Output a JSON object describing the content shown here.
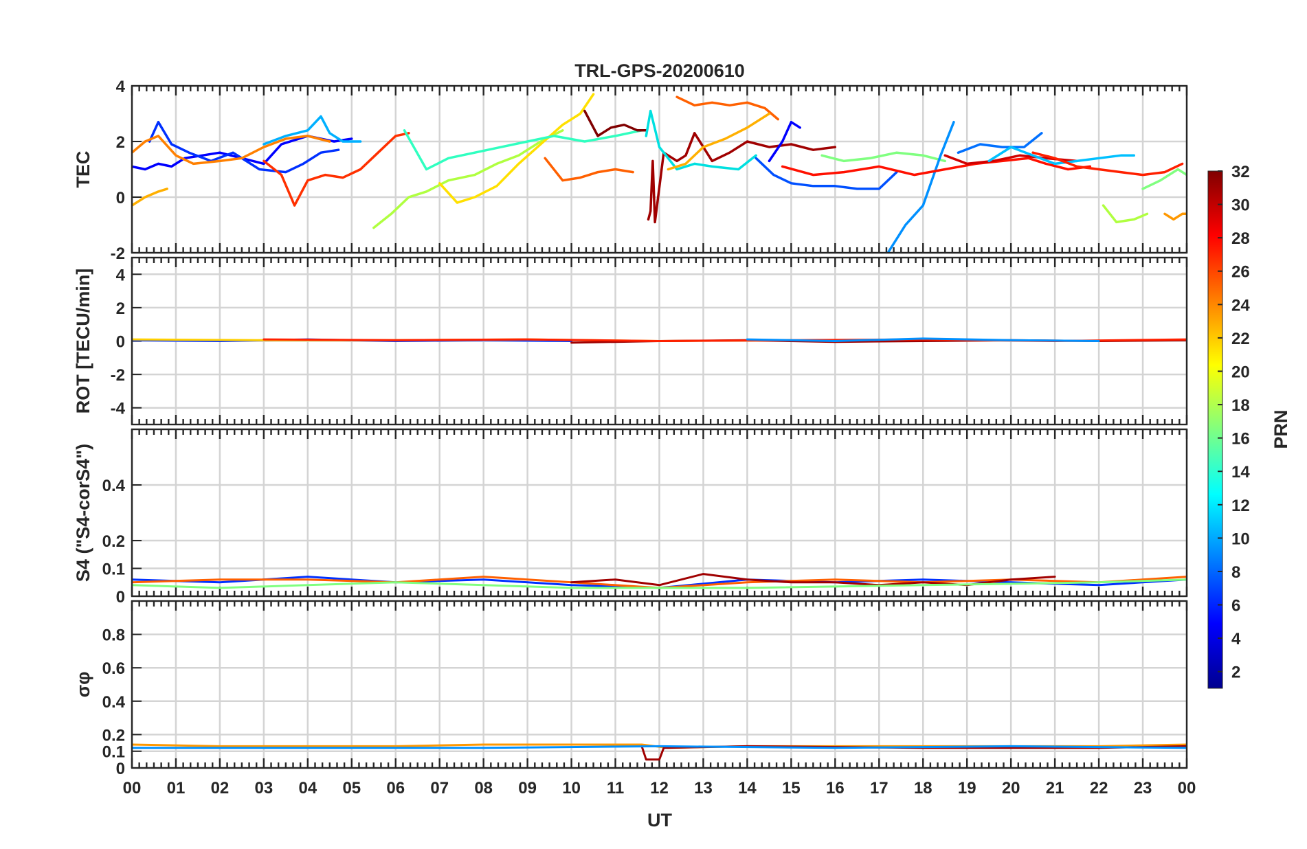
{
  "chart_data": {
    "type": "line",
    "title": "TRL-GPS-20200610",
    "xlabel": "UT",
    "xlim": [
      0,
      24
    ],
    "x_ticks": [
      "00",
      "01",
      "02",
      "03",
      "04",
      "05",
      "06",
      "07",
      "08",
      "09",
      "10",
      "11",
      "12",
      "13",
      "14",
      "15",
      "16",
      "17",
      "18",
      "19",
      "20",
      "21",
      "22",
      "23",
      "00"
    ],
    "colorbar": {
      "label": "PRN",
      "range": [
        1,
        32
      ],
      "ticks": [
        "2",
        "4",
        "6",
        "8",
        "10",
        "12",
        "14",
        "16",
        "18",
        "20",
        "22",
        "24",
        "26",
        "28",
        "30",
        "32"
      ],
      "colormap": "jet"
    },
    "panels": [
      {
        "ylabel": "TEC",
        "ylim": [
          -2,
          4
        ],
        "y_ticks": [
          "-2",
          "0",
          "2",
          "4"
        ],
        "series": [
          {
            "prn": 3,
            "color": "#0000ff",
            "x": [
              0,
              0.3,
              0.6,
              0.9,
              1.2,
              1.6,
              2.0,
              2.5,
              3.0,
              3.4,
              4.0,
              4.6,
              5.0
            ],
            "y": [
              1.1,
              1.0,
              1.2,
              1.1,
              1.4,
              1.5,
              1.6,
              1.4,
              1.2,
              1.9,
              2.2,
              2.0,
              2.1
            ]
          },
          {
            "prn": 5,
            "color": "#0030ff",
            "x": [
              0.4,
              0.6,
              0.9,
              1.3,
              1.8,
              2.3,
              2.9,
              3.5,
              3.9,
              4.3,
              4.7
            ],
            "y": [
              2.0,
              2.7,
              1.9,
              1.6,
              1.3,
              1.6,
              1.0,
              0.9,
              1.2,
              1.6,
              1.7
            ]
          },
          {
            "prn": 11,
            "color": "#00b0ff",
            "x": [
              3.0,
              3.5,
              4.0,
              4.3,
              4.5,
              4.8,
              5.2
            ],
            "y": [
              1.9,
              2.2,
              2.4,
              2.9,
              2.3,
              2.0,
              2.0
            ]
          },
          {
            "prn": 26,
            "color": "#ff3000",
            "x": [
              3.0,
              3.4,
              3.7,
              4.0,
              4.4,
              4.8,
              5.2,
              5.6,
              6.0,
              6.3
            ],
            "y": [
              1.3,
              0.8,
              -0.3,
              0.6,
              0.8,
              0.7,
              1.0,
              1.6,
              2.2,
              2.3
            ]
          },
          {
            "prn": 23,
            "color": "#ff8000",
            "x": [
              0,
              0.3,
              0.6,
              1.0,
              1.4,
              2.0,
              2.5,
              3.0,
              3.5,
              4.0,
              4.5
            ],
            "y": [
              1.6,
              2.0,
              2.2,
              1.5,
              1.2,
              1.3,
              1.4,
              1.8,
              2.1,
              2.2,
              2.0
            ]
          },
          {
            "prn": 21,
            "color": "#ffb000",
            "x": [
              0,
              0.3,
              0.6,
              0.8
            ],
            "y": [
              -0.3,
              0.0,
              0.2,
              0.3
            ]
          },
          {
            "prn": 17,
            "color": "#b0ff40",
            "x": [
              5.5,
              5.9,
              6.3,
              6.7,
              7.2,
              7.8,
              8.3,
              8.8,
              9.3,
              9.8
            ],
            "y": [
              -1.1,
              -0.6,
              0,
              0.2,
              0.6,
              0.8,
              1.2,
              1.5,
              2.0,
              2.4
            ]
          },
          {
            "prn": 19,
            "color": "#ffe000",
            "x": [
              7.0,
              7.4,
              7.8,
              8.3,
              8.8,
              9.3,
              9.8,
              10.2,
              10.5
            ],
            "y": [
              0.5,
              -0.2,
              0,
              0.4,
              1.2,
              1.9,
              2.6,
              3.0,
              3.7
            ]
          },
          {
            "prn": 14,
            "color": "#30ffc0",
            "x": [
              6.2,
              6.7,
              7.2,
              7.8,
              8.4,
              9.0,
              9.6,
              10.3,
              11.0,
              11.6
            ],
            "y": [
              2.4,
              1.0,
              1.4,
              1.6,
              1.8,
              2.0,
              2.2,
              2.0,
              2.2,
              2.4
            ]
          },
          {
            "prn": 24,
            "color": "#ff6000",
            "x": [
              9.4,
              9.8,
              10.2,
              10.6,
              11.0,
              11.4
            ],
            "y": [
              1.4,
              0.6,
              0.7,
              0.9,
              1.0,
              0.9
            ]
          },
          {
            "prn": 32,
            "color": "#800000",
            "x": [
              10.3,
              10.6,
              10.9,
              11.2,
              11.5,
              11.7
            ],
            "y": [
              3.1,
              2.2,
              2.5,
              2.6,
              2.4,
              2.4
            ]
          },
          {
            "prn": 31,
            "color": "#a00000",
            "x": [
              11.75,
              11.8,
              11.85,
              11.9,
              12.1,
              12.4,
              12.6,
              12.8,
              13.2,
              13.6,
              14.0,
              14.5,
              15.0,
              15.5,
              16.0
            ],
            "y": [
              -0.8,
              -0.5,
              1.3,
              -0.9,
              1.6,
              1.3,
              1.5,
              2.3,
              1.3,
              1.6,
              2.0,
              1.8,
              1.9,
              1.7,
              1.8
            ]
          },
          {
            "prn": 13,
            "color": "#00e0e0",
            "x": [
              11.7,
              11.8,
              12.0,
              12.4,
              12.8,
              13.2,
              13.8,
              14.2
            ],
            "y": [
              2.2,
              3.1,
              1.8,
              1.0,
              1.2,
              1.1,
              1.0,
              1.5
            ]
          },
          {
            "prn": 24,
            "color": "#ff6000",
            "x": [
              12.4,
              12.8,
              13.2,
              13.6,
              14.0,
              14.4,
              14.7
            ],
            "y": [
              3.6,
              3.3,
              3.4,
              3.3,
              3.4,
              3.2,
              2.8
            ]
          },
          {
            "prn": 21,
            "color": "#ffb000",
            "x": [
              12.2,
              12.6,
              13.0,
              13.5,
              14.0,
              14.5
            ],
            "y": [
              1.0,
              1.2,
              1.8,
              2.1,
              2.5,
              3.0
            ]
          },
          {
            "prn": 6,
            "color": "#0050ff",
            "x": [
              14.2,
              14.6,
              15.0,
              15.5,
              16.0,
              16.5,
              17.0,
              17.4
            ],
            "y": [
              1.4,
              0.8,
              0.5,
              0.4,
              0.4,
              0.3,
              0.3,
              0.9
            ]
          },
          {
            "prn": 3,
            "color": "#0000ff",
            "x": [
              14.5,
              14.8,
              15.0,
              15.2
            ],
            "y": [
              1.3,
              2.0,
              2.7,
              2.5
            ]
          },
          {
            "prn": 16,
            "color": "#80ff80",
            "x": [
              15.7,
              16.2,
              16.8,
              17.4,
              18.0,
              18.5
            ],
            "y": [
              1.5,
              1.3,
              1.4,
              1.6,
              1.5,
              1.3
            ]
          },
          {
            "prn": 9,
            "color": "#0090ff",
            "x": [
              17.2,
              17.6,
              18.0,
              18.4,
              18.7
            ],
            "y": [
              -2.0,
              -1.0,
              -0.3,
              1.5,
              2.7
            ]
          },
          {
            "prn": 28,
            "color": "#ff1000",
            "x": [
              14.8,
              15.5,
              16.2,
              17.0,
              17.8,
              18.5,
              19.2,
              19.8,
              20.4,
              20.8,
              21.3,
              21.8
            ],
            "y": [
              1.1,
              0.8,
              0.9,
              1.1,
              0.8,
              1.0,
              1.2,
              1.3,
              1.4,
              1.2,
              1.0,
              1.1
            ]
          },
          {
            "prn": 30,
            "color": "#d00000",
            "x": [
              18.5,
              19.0,
              19.6,
              20.2,
              20.8,
              21.5
            ],
            "y": [
              1.5,
              1.2,
              1.3,
              1.5,
              1.4,
              1.3
            ]
          },
          {
            "prn": 7,
            "color": "#0070ff",
            "x": [
              18.8,
              19.3,
              19.8,
              20.3,
              20.7
            ],
            "y": [
              1.6,
              1.9,
              1.8,
              1.8,
              2.3
            ]
          },
          {
            "prn": 12,
            "color": "#00c0ff",
            "x": [
              19.5,
              20.0,
              20.5,
              21.0,
              21.5,
              22.0,
              22.5,
              22.8
            ],
            "y": [
              1.3,
              1.8,
              1.5,
              1.2,
              1.3,
              1.4,
              1.5,
              1.5
            ]
          },
          {
            "prn": 27,
            "color": "#ff2000",
            "x": [
              20.5,
              21.0,
              21.5,
              22.0,
              22.5,
              23.0,
              23.5,
              23.9
            ],
            "y": [
              1.6,
              1.4,
              1.1,
              1.0,
              0.9,
              0.8,
              0.9,
              1.2
            ]
          },
          {
            "prn": 17,
            "color": "#b0ff40",
            "x": [
              22.1,
              22.4,
              22.8,
              23.1
            ],
            "y": [
              -0.3,
              -0.9,
              -0.8,
              -0.6
            ]
          },
          {
            "prn": 16,
            "color": "#80ff80",
            "x": [
              23.0,
              23.4,
              23.8,
              24.0
            ],
            "y": [
              0.3,
              0.6,
              1.0,
              0.8
            ]
          },
          {
            "prn": 22,
            "color": "#ff9800",
            "x": [
              23.5,
              23.7,
              23.9,
              24.0
            ],
            "y": [
              -0.6,
              -0.8,
              -0.6,
              -0.6
            ]
          }
        ]
      },
      {
        "ylabel": "ROT [TECU/min]",
        "ylim": [
          -5,
          5
        ],
        "y_ticks": [
          "-4",
          "-2",
          "0",
          "2",
          "4"
        ],
        "series": [
          {
            "prn": 5,
            "color": "#0030ff",
            "x": [
              0,
              2,
              4,
              6,
              8,
              10
            ],
            "y": [
              0.05,
              0.0,
              0.1,
              0.0,
              0.05,
              0.0
            ]
          },
          {
            "prn": 20,
            "color": "#ffd000",
            "x": [
              0,
              3,
              6,
              9,
              12,
              15
            ],
            "y": [
              0.1,
              0.05,
              0.05,
              0.1,
              0.0,
              0.05
            ]
          },
          {
            "prn": 31,
            "color": "#a00000",
            "x": [
              10,
              12,
              14,
              16,
              18,
              20,
              22,
              24
            ],
            "y": [
              -0.1,
              0.0,
              0.05,
              -0.05,
              0.0,
              0.05,
              0.0,
              0.05
            ]
          },
          {
            "prn": 27,
            "color": "#ff2000",
            "x": [
              3,
              6,
              9,
              12,
              15,
              18,
              21,
              24
            ],
            "y": [
              0.1,
              0.05,
              0.1,
              0.0,
              0.05,
              0.1,
              0.0,
              0.1
            ]
          },
          {
            "prn": 9,
            "color": "#0090ff",
            "x": [
              14,
              16,
              18,
              20,
              22
            ],
            "y": [
              0.1,
              0.0,
              0.15,
              0.05,
              0.0
            ]
          }
        ]
      },
      {
        "ylabel": "S4 (\"S4-corS4\")",
        "ylim": [
          0,
          0.6
        ],
        "y_ticks": [
          "0",
          "0.1",
          "0.2",
          "0.4"
        ],
        "series": [
          {
            "prn": 5,
            "color": "#0030ff",
            "x": [
              0,
              2,
              4,
              6,
              8,
              10,
              12,
              14,
              16,
              18,
              20,
              22,
              24
            ],
            "y": [
              0.06,
              0.05,
              0.07,
              0.05,
              0.06,
              0.04,
              0.03,
              0.06,
              0.05,
              0.06,
              0.05,
              0.04,
              0.06
            ]
          },
          {
            "prn": 24,
            "color": "#ff6000",
            "x": [
              0,
              2,
              4,
              6,
              8,
              10,
              12,
              14,
              16,
              18,
              20,
              22,
              24
            ],
            "y": [
              0.05,
              0.06,
              0.06,
              0.05,
              0.07,
              0.05,
              0.03,
              0.05,
              0.06,
              0.05,
              0.06,
              0.05,
              0.07
            ]
          },
          {
            "prn": 31,
            "color": "#a00000",
            "x": [
              10,
              11,
              12,
              13,
              14,
              15,
              16,
              17,
              18,
              19,
              20,
              21
            ],
            "y": [
              0.05,
              0.06,
              0.04,
              0.08,
              0.06,
              0.05,
              0.05,
              0.04,
              0.05,
              0.04,
              0.06,
              0.07
            ]
          },
          {
            "prn": 16,
            "color": "#80ff80",
            "x": [
              0,
              2,
              4,
              6,
              8,
              10,
              14,
              18,
              22,
              24
            ],
            "y": [
              0.04,
              0.03,
              0.04,
              0.05,
              0.04,
              0.03,
              0.03,
              0.04,
              0.05,
              0.06
            ]
          }
        ]
      },
      {
        "ylabel": "σφ",
        "ylim": [
          0,
          1
        ],
        "y_ticks": [
          "0",
          "0.1",
          "0.2",
          "0.4",
          "0.6",
          "0.8"
        ],
        "series": [
          {
            "prn": 22,
            "color": "#ff9800",
            "x": [
              0,
              2,
              4,
              6,
              8,
              10,
              11.6,
              12.2,
              14,
              16,
              18,
              20,
              22,
              24
            ],
            "y": [
              0.14,
              0.13,
              0.13,
              0.13,
              0.14,
              0.14,
              0.14,
              0.12,
              0.13,
              0.13,
              0.13,
              0.13,
              0.13,
              0.14
            ]
          },
          {
            "prn": 31,
            "color": "#a00000",
            "x": [
              11.6,
              11.7,
              12.0,
              12.1,
              14,
              18,
              22,
              24
            ],
            "y": [
              0.13,
              0.05,
              0.05,
              0.12,
              0.13,
              0.12,
              0.12,
              0.13
            ]
          },
          {
            "prn": 9,
            "color": "#0090ff",
            "x": [
              0,
              4,
              8,
              12,
              16,
              20,
              24
            ],
            "y": [
              0.12,
              0.12,
              0.12,
              0.13,
              0.12,
              0.13,
              0.12
            ]
          }
        ]
      }
    ]
  }
}
